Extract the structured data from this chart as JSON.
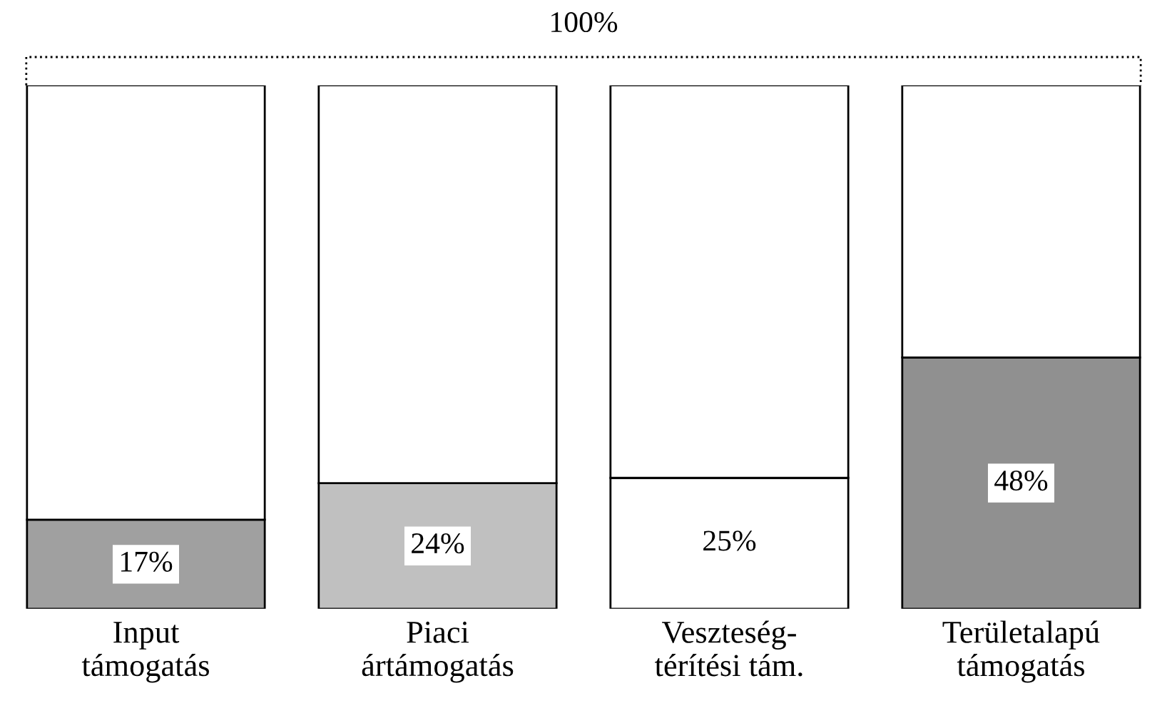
{
  "chart_data": {
    "type": "bar",
    "stacked": true,
    "categories": [
      "Input\ntámogatás",
      "Piaci\nártámogatás",
      "Veszteség-\ntérítési tám.",
      "Területalapú\ntámogatás"
    ],
    "series": [
      {
        "colors": [
          "#a0a0a0",
          "#c0c0c0",
          "#ffffff",
          "#909090"
        ],
        "values": [
          17,
          24,
          25,
          48
        ],
        "value_labels": [
          "17%",
          "24%",
          "25%",
          "48%"
        ]
      },
      {
        "color": "#ffffff",
        "values": [
          83,
          76,
          75,
          52
        ]
      }
    ],
    "annotations": [
      "100%"
    ],
    "grid": false
  }
}
